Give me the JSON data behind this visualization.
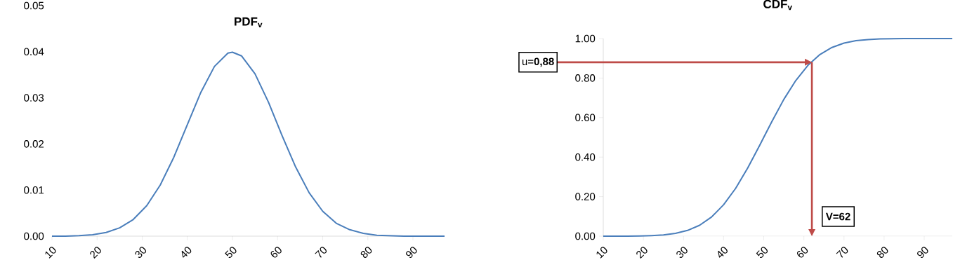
{
  "chart_data": [
    {
      "type": "line",
      "title": "PDF$_{v}$",
      "x": [
        10,
        13,
        16,
        19,
        22,
        25,
        28,
        31,
        34,
        37,
        40,
        43,
        46,
        49,
        50,
        52,
        55,
        58,
        61,
        64,
        67,
        70,
        73,
        76,
        79,
        82,
        85,
        88,
        91,
        94,
        97
      ],
      "series": [
        {
          "color": "#4a7ebb",
          "values": [
            0.0,
            0.0,
            0.0001,
            0.0003,
            0.0008,
            0.0018,
            0.0036,
            0.0066,
            0.0111,
            0.0171,
            0.0242,
            0.0312,
            0.0368,
            0.0397,
            0.0399,
            0.0391,
            0.0352,
            0.029,
            0.0218,
            0.015,
            0.0094,
            0.0054,
            0.0028,
            0.0014,
            0.0006,
            0.0002,
            0.0001,
            0.0,
            0.0,
            0.0,
            0.0
          ]
        }
      ],
      "xlim": [
        10,
        97
      ],
      "xticks": [
        10,
        20,
        30,
        40,
        50,
        60,
        70,
        80,
        90
      ],
      "ylim": [
        0,
        0.05
      ],
      "yticks": [
        {
          "value": 0,
          "label": "0.00"
        },
        {
          "value": 0.01,
          "label": "0.01"
        },
        {
          "value": 0.02,
          "label": "0.02"
        },
        {
          "value": 0.03,
          "label": "0.03"
        },
        {
          "value": 0.04,
          "label": "0.04"
        },
        {
          "value": 0.05,
          "label": "0.05"
        }
      ]
    },
    {
      "type": "line",
      "title": "CDF$_{v}$",
      "x": [
        10,
        13,
        16,
        19,
        22,
        25,
        28,
        31,
        34,
        37,
        40,
        43,
        46,
        49,
        50,
        52,
        55,
        58,
        61,
        64,
        67,
        70,
        73,
        76,
        79,
        82,
        85,
        88,
        91,
        94,
        97
      ],
      "series": [
        {
          "color": "#4a7ebb",
          "values": [
            0.0,
            0.0,
            0.0,
            0.001,
            0.003,
            0.006,
            0.014,
            0.029,
            0.055,
            0.097,
            0.159,
            0.242,
            0.345,
            0.46,
            0.5,
            0.579,
            0.692,
            0.788,
            0.864,
            0.919,
            0.955,
            0.977,
            0.989,
            0.995,
            0.998,
            0.999,
            1.0,
            1.0,
            1.0,
            1.0,
            1.0
          ]
        }
      ],
      "xlim": [
        10,
        97
      ],
      "xticks": [
        10,
        20,
        30,
        40,
        50,
        60,
        70,
        80,
        90
      ],
      "ylim": [
        0,
        1
      ],
      "yticks": [
        {
          "value": 0,
          "label": "0.00"
        },
        {
          "value": 0.2,
          "label": "0.20"
        },
        {
          "value": 0.4,
          "label": "0.40"
        },
        {
          "value": 0.6,
          "label": "0.60"
        },
        {
          "value": 0.8,
          "label": "0.80"
        },
        {
          "value": 1,
          "label": "1.00"
        }
      ],
      "ref_lines": [
        {
          "axis": "y",
          "value": 0.88,
          "label": "u=**0,88**",
          "color": "#be4b48"
        },
        {
          "axis": "x",
          "value": 62,
          "label": "V=62",
          "color": "#be4b48"
        }
      ]
    }
  ]
}
